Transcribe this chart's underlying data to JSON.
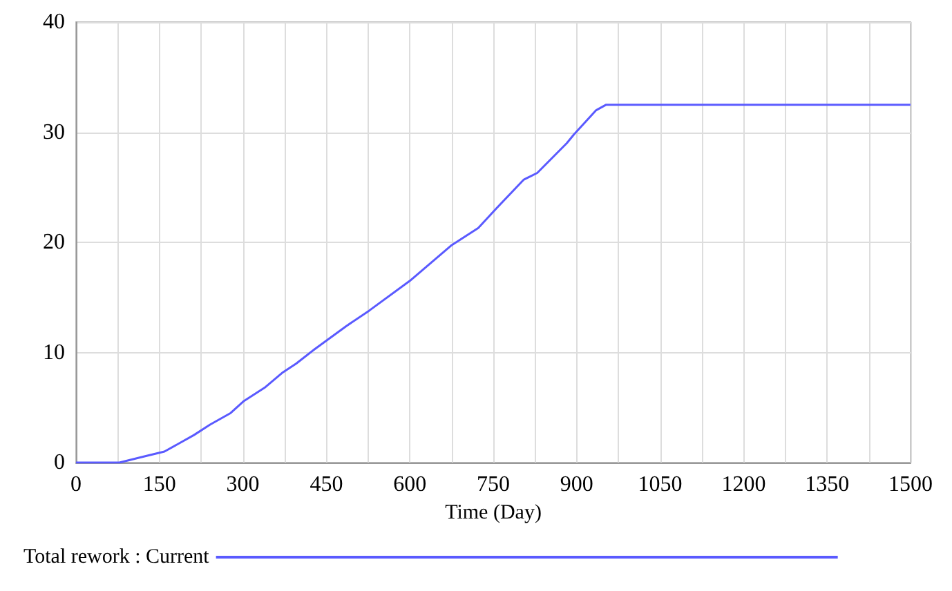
{
  "chart_data": {
    "type": "line",
    "xlabel": "Time (Day)",
    "x": [
      0,
      78,
      118,
      159,
      212,
      241,
      278,
      302,
      339,
      372,
      396,
      429,
      486,
      527,
      600,
      674,
      723,
      756,
      805,
      829,
      882,
      895,
      935,
      953,
      1500
    ],
    "series": [
      {
        "name": "Total rework : Current",
        "color": "#5a5aff",
        "values": [
          0,
          0,
          0.5,
          1.0,
          2.5,
          3.45,
          4.5,
          5.6,
          6.8,
          8.2,
          9.0,
          10.3,
          12.4,
          13.8,
          16.5,
          19.7,
          21.3,
          23.1,
          25.7,
          26.3,
          29.0,
          29.8,
          32.0,
          32.5,
          32.5
        ]
      }
    ],
    "xlim": [
      0,
      1500
    ],
    "xticks": [
      0,
      {
        "value": 75,
        "label": null
      },
      150,
      {
        "value": 225,
        "label": null
      },
      300,
      {
        "value": 375,
        "label": null
      },
      450,
      {
        "value": 525,
        "label": null
      },
      600,
      {
        "value": 675,
        "label": null
      },
      750,
      {
        "value": 825,
        "label": null
      },
      900,
      {
        "value": 975,
        "label": null
      },
      1050,
      {
        "value": 1125,
        "label": null
      },
      1200,
      {
        "value": 1275,
        "label": null
      },
      1350,
      {
        "value": 1425,
        "label": null
      },
      1500
    ],
    "ylim": [
      0,
      40
    ],
    "yticks": [
      0,
      10,
      20,
      30,
      40
    ],
    "grid": true,
    "legend": "bottom left",
    "marker": "none",
    "line_style": "solid"
  }
}
